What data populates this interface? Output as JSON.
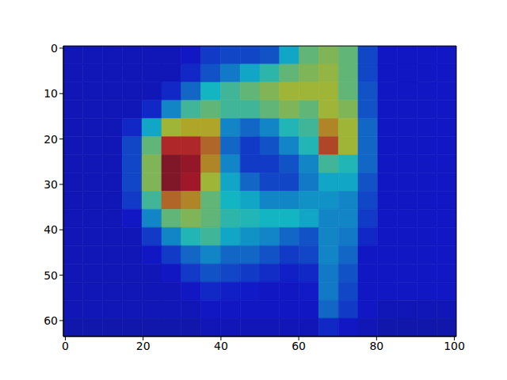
{
  "chart_data": {
    "type": "heatmap",
    "xlim": [
      -0.5,
      100.5
    ],
    "ylim": [
      63.5,
      -0.5
    ],
    "xticks": [
      0,
      20,
      40,
      60,
      80,
      100
    ],
    "yticks": [
      0,
      10,
      20,
      30,
      40,
      50,
      60
    ],
    "cells": [
      [
        0.1,
        0.1,
        0.1,
        0.1,
        0.1,
        0.1,
        0.12,
        0.18,
        0.2,
        0.2,
        0.22,
        0.35,
        0.5,
        0.55,
        0.5,
        0.2,
        0.12,
        0.12,
        0.12,
        0.12
      ],
      [
        0.1,
        0.1,
        0.1,
        0.1,
        0.1,
        0.1,
        0.15,
        0.22,
        0.28,
        0.35,
        0.42,
        0.5,
        0.55,
        0.58,
        0.5,
        0.2,
        0.12,
        0.12,
        0.12,
        0.12
      ],
      [
        0.1,
        0.1,
        0.1,
        0.1,
        0.1,
        0.15,
        0.25,
        0.38,
        0.45,
        0.5,
        0.55,
        0.6,
        0.6,
        0.6,
        0.5,
        0.22,
        0.12,
        0.12,
        0.12,
        0.12
      ],
      [
        0.1,
        0.1,
        0.1,
        0.1,
        0.15,
        0.3,
        0.45,
        0.5,
        0.45,
        0.45,
        0.5,
        0.55,
        0.5,
        0.6,
        0.55,
        0.22,
        0.12,
        0.12,
        0.12,
        0.12
      ],
      [
        0.1,
        0.1,
        0.1,
        0.15,
        0.35,
        0.6,
        0.65,
        0.65,
        0.3,
        0.25,
        0.3,
        0.4,
        0.45,
        0.7,
        0.6,
        0.25,
        0.12,
        0.12,
        0.12,
        0.12
      ],
      [
        0.1,
        0.1,
        0.1,
        0.2,
        0.5,
        0.85,
        0.85,
        0.75,
        0.25,
        0.18,
        0.22,
        0.3,
        0.4,
        0.8,
        0.6,
        0.25,
        0.12,
        0.12,
        0.12,
        0.12
      ],
      [
        0.1,
        0.1,
        0.1,
        0.2,
        0.55,
        0.95,
        0.92,
        0.7,
        0.3,
        0.18,
        0.18,
        0.22,
        0.3,
        0.45,
        0.4,
        0.25,
        0.12,
        0.12,
        0.12,
        0.12
      ],
      [
        0.1,
        0.1,
        0.1,
        0.2,
        0.55,
        0.95,
        0.9,
        0.6,
        0.35,
        0.25,
        0.2,
        0.2,
        0.28,
        0.35,
        0.35,
        0.22,
        0.12,
        0.12,
        0.12,
        0.12
      ],
      [
        0.1,
        0.1,
        0.1,
        0.18,
        0.45,
        0.75,
        0.7,
        0.5,
        0.38,
        0.35,
        0.3,
        0.3,
        0.32,
        0.32,
        0.3,
        0.2,
        0.12,
        0.12,
        0.12,
        0.12
      ],
      [
        0.1,
        0.1,
        0.1,
        0.12,
        0.3,
        0.5,
        0.55,
        0.5,
        0.42,
        0.4,
        0.38,
        0.38,
        0.35,
        0.3,
        0.3,
        0.18,
        0.12,
        0.12,
        0.12,
        0.12
      ],
      [
        0.1,
        0.1,
        0.1,
        0.1,
        0.18,
        0.3,
        0.4,
        0.45,
        0.35,
        0.32,
        0.3,
        0.25,
        0.22,
        0.3,
        0.28,
        0.15,
        0.12,
        0.12,
        0.12,
        0.12
      ],
      [
        0.1,
        0.1,
        0.1,
        0.1,
        0.12,
        0.18,
        0.25,
        0.3,
        0.25,
        0.25,
        0.22,
        0.18,
        0.2,
        0.3,
        0.25,
        0.12,
        0.12,
        0.12,
        0.12,
        0.12
      ],
      [
        0.1,
        0.1,
        0.1,
        0.1,
        0.1,
        0.12,
        0.18,
        0.22,
        0.2,
        0.18,
        0.16,
        0.14,
        0.15,
        0.28,
        0.22,
        0.12,
        0.12,
        0.12,
        0.12,
        0.12
      ],
      [
        0.1,
        0.1,
        0.1,
        0.1,
        0.1,
        0.1,
        0.12,
        0.15,
        0.14,
        0.13,
        0.12,
        0.12,
        0.13,
        0.28,
        0.2,
        0.12,
        0.12,
        0.12,
        0.12,
        0.12
      ],
      [
        0.1,
        0.1,
        0.1,
        0.1,
        0.1,
        0.1,
        0.1,
        0.12,
        0.12,
        0.12,
        0.12,
        0.12,
        0.12,
        0.25,
        0.18,
        0.12,
        0.1,
        0.1,
        0.1,
        0.1
      ],
      [
        0.08,
        0.08,
        0.08,
        0.08,
        0.08,
        0.08,
        0.08,
        0.1,
        0.1,
        0.1,
        0.1,
        0.1,
        0.1,
        0.15,
        0.12,
        0.1,
        0.08,
        0.08,
        0.08,
        0.08
      ]
    ]
  }
}
